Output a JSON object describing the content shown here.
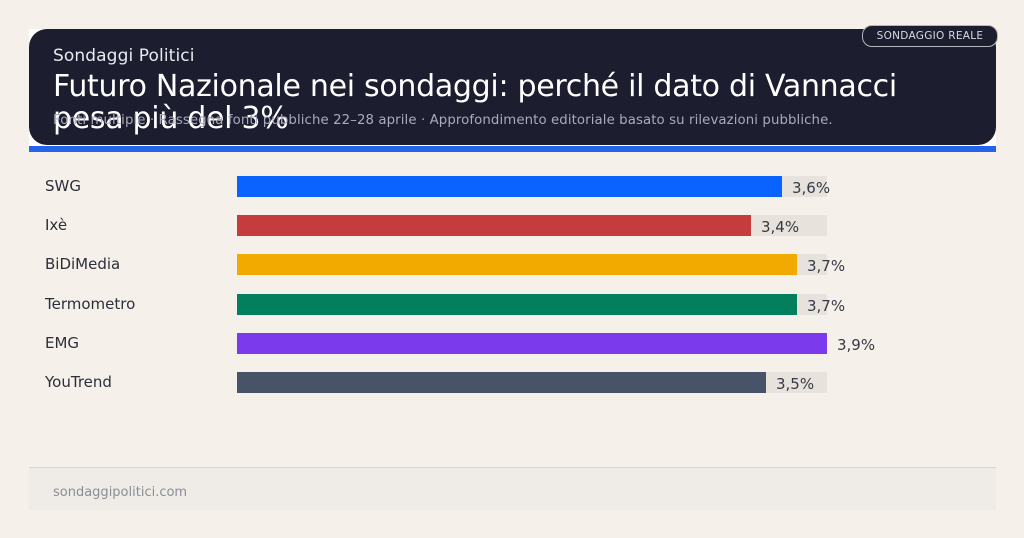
{
  "header": {
    "brand": "Sondaggi Politici",
    "title": "Futuro Nazionale nei sondaggi: perché il dato di Vannacci pesa più del 3%",
    "subtitle": "Fonti multiple · Rassegna fonti pubbliche 22–28 aprile · Approfondimento editoriale basato su rilevazioni pubbliche.",
    "badge": "SONDAGGIO REALE"
  },
  "colors": {
    "header_bg": "#1c1d2f",
    "accent_rule": "#2563eb",
    "track": "#e7e2db",
    "page_bg": "#f5f0ea"
  },
  "chart_data": {
    "type": "bar",
    "orientation": "horizontal",
    "title": "Futuro Nazionale nei sondaggi: perché il dato di Vannacci pesa più del 3%",
    "xlabel": "",
    "ylabel": "",
    "unit": "%",
    "xlim": [
      0,
      3.9
    ],
    "grid": false,
    "legend": null,
    "categories": [
      "SWG",
      "Ixè",
      "BiDiMedia",
      "Termometro",
      "EMG",
      "YouTrend"
    ],
    "values": [
      3.6,
      3.4,
      3.7,
      3.7,
      3.9,
      3.5
    ],
    "value_labels": [
      "3,6%",
      "3,4%",
      "3,7%",
      "3,7%",
      "3,9%",
      "3,5%"
    ],
    "bar_colors": [
      "#0b63ff",
      "#c43c3c",
      "#f2a900",
      "#047f5e",
      "#7c3aed",
      "#475467"
    ]
  },
  "footer": {
    "site": "sondaggipolitici.com"
  }
}
